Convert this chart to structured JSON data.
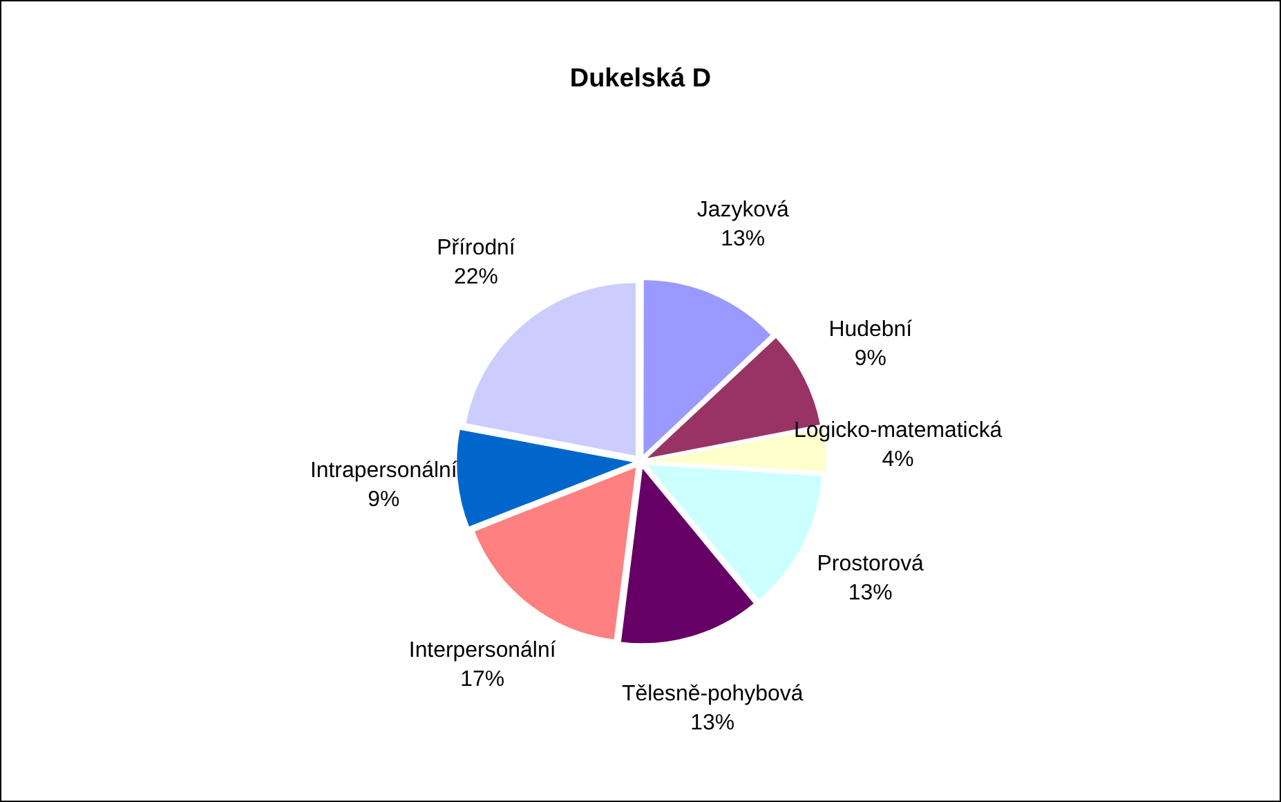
{
  "chart_data": {
    "type": "pie",
    "title": "Dukelská D",
    "categories": [
      "Jazyková",
      "Hudební",
      "Logicko-matematická",
      "Prostorová",
      "Tělesně-pohybová",
      "Interpersonální",
      "Intrapersonální",
      "Přírodní"
    ],
    "values": [
      13,
      9,
      4,
      13,
      13,
      17,
      9,
      22
    ],
    "value_labels": [
      "13%",
      "9%",
      "4%",
      "13%",
      "13%",
      "17%",
      "9%",
      "22%"
    ],
    "colors": [
      "#9999ff",
      "#993366",
      "#ffffcc",
      "#ccffff",
      "#660066",
      "#ff8080",
      "#0066cc",
      "#ccccff"
    ],
    "legend": false
  }
}
